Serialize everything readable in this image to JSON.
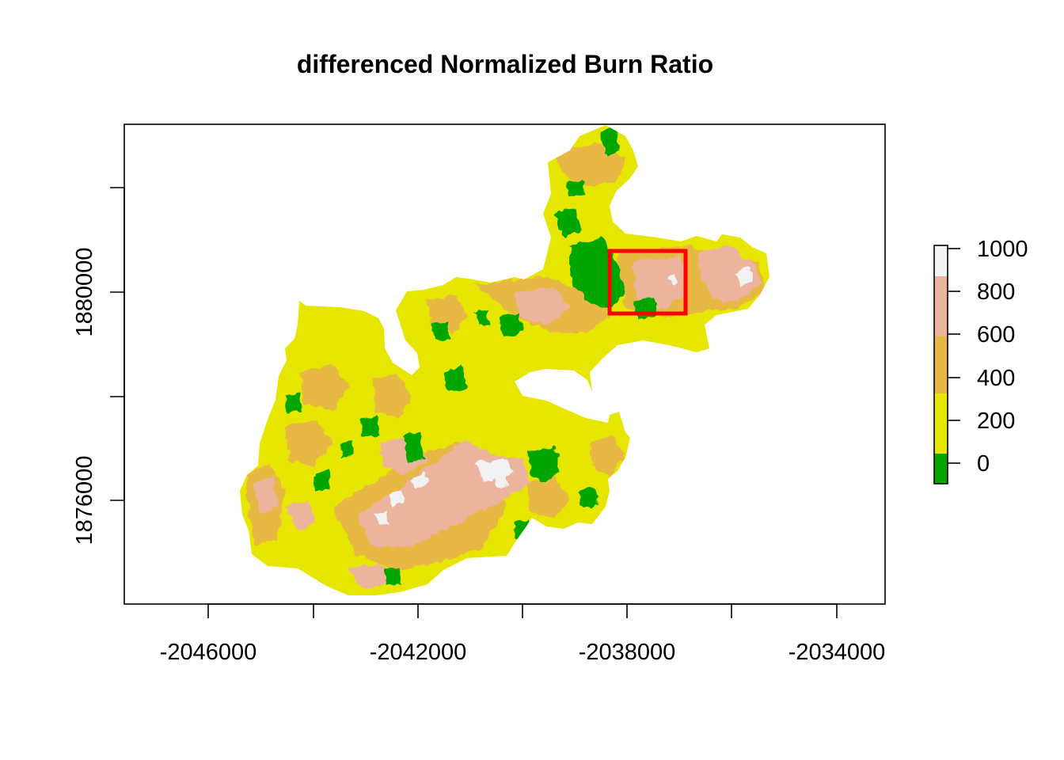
{
  "title": "differenced Normalized Burn Ratio",
  "x_ticks": [
    "-2046000",
    "-2042000",
    "-2038000",
    "-2034000"
  ],
  "y_ticks": [
    "1876000",
    "1880000"
  ],
  "legend": {
    "labels": [
      "0",
      "200",
      "400",
      "600",
      "800",
      "1000"
    ],
    "classes": [
      {
        "from": -100,
        "to": 0,
        "color": "#00a600"
      },
      {
        "from": 0,
        "to": 270,
        "color": "#e6e600"
      },
      {
        "from": 270,
        "to": 550,
        "color": "#e8b845"
      },
      {
        "from": 550,
        "to": 840,
        "color": "#ecb49c"
      },
      {
        "from": 840,
        "to": 1000,
        "color": "#f2f2f2"
      }
    ]
  },
  "highlight_box": {
    "color": "#ff0000"
  },
  "colors": {
    "unburned": "#00a600",
    "low": "#e6e600",
    "moderate_low": "#e8b845",
    "moderate_high": "#ecb49c",
    "high": "#f2f2f2",
    "axis": "#000000"
  }
}
